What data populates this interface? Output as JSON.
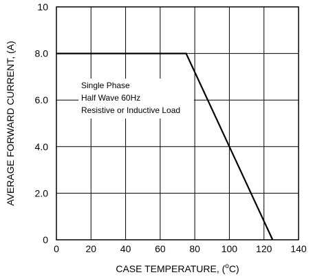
{
  "chart_data": {
    "type": "line",
    "xlabel_main": "CASE TEMPERATURE, (",
    "xlabel_sup": "o",
    "xlabel_end": "C)",
    "ylabel": "AVERAGE FORWARD CURRENT, (A)",
    "xlim": [
      0,
      140
    ],
    "ylim": [
      0,
      10
    ],
    "x_ticks": [
      0,
      20,
      40,
      60,
      80,
      100,
      120,
      140
    ],
    "x_tick_labels": [
      "0",
      "20",
      "40",
      "60",
      "80",
      "100",
      "120",
      "140"
    ],
    "y_ticks": [
      0,
      2,
      4,
      6,
      8,
      10
    ],
    "y_tick_labels": [
      "0",
      "2.0",
      "4.0",
      "6.0",
      "8.0",
      "10"
    ],
    "grid": true,
    "series": [
      {
        "x": [
          0,
          75,
          125
        ],
        "y": [
          8.0,
          8.0,
          0
        ]
      }
    ],
    "annotation_lines": [
      "Single Phase",
      "Half Wave 60Hz",
      "Resistive or Inductive Load"
    ],
    "colors": {
      "line": "#000000",
      "grid": "#000000",
      "background": "#ffffff"
    }
  }
}
